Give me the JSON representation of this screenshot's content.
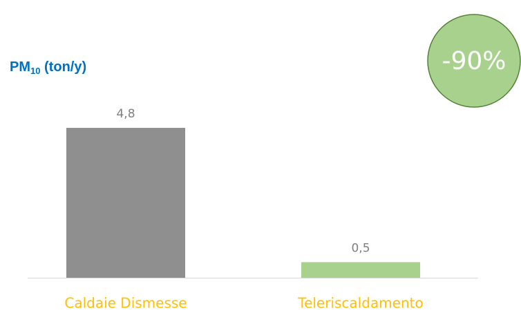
{
  "chart_data": {
    "type": "bar",
    "title": [
      "PM",
      "10",
      " (ton/y)"
    ],
    "annotation": "-90%",
    "categories": [
      "Caldaie Dismesse",
      "Teleriscaldamento"
    ],
    "values": [
      4.8,
      0.5
    ],
    "value_labels": [
      "4,8",
      "0,5"
    ],
    "colors": [
      "#8f8f8f",
      "#a9d18e"
    ],
    "ylim": [
      0,
      5
    ]
  }
}
